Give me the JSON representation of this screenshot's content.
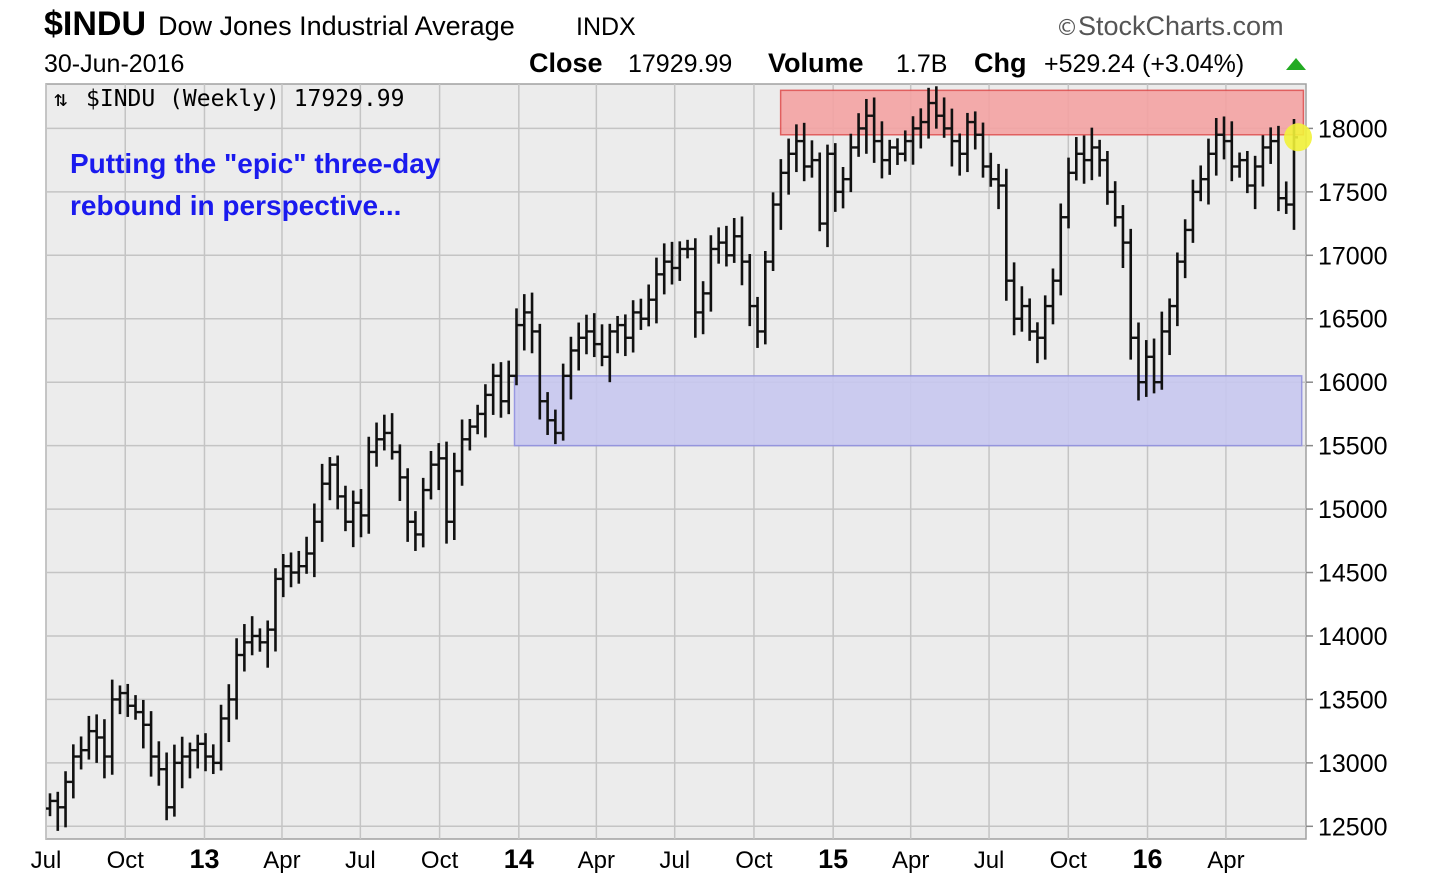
{
  "header": {
    "symbol": "$INDU",
    "name": "Dow Jones Industrial Average",
    "exchange": "INDX",
    "brand": "StockCharts.com",
    "date": "30-Jun-2016",
    "close_label": "Close",
    "close_value": "17929.99",
    "volume_label": "Volume",
    "volume_value": "1.7B",
    "chg_label": "Chg",
    "chg_value": "+529.24 (+3.04%)"
  },
  "legend": {
    "text": "$INDU (Weekly) 17929.99"
  },
  "annotation": {
    "line1": "Putting the \"epic\" three-day",
    "line2": "rebound in perspective..."
  },
  "colors": {
    "background": "#ececec",
    "annotation_text": "#1a1aee",
    "resistance_zone": "#f4a3a3",
    "support_zone": "#c8c8f0",
    "up_marker": "#22aa22",
    "last_price_marker": "#f2f23a"
  },
  "chart_data": {
    "type": "ohlc",
    "interval": "weekly",
    "grid": true,
    "ylim": [
      12400,
      18350
    ],
    "y_ticks": [
      12500,
      13000,
      13500,
      14000,
      14500,
      15000,
      15500,
      16000,
      16500,
      17000,
      17500,
      18000
    ],
    "x_tick_labels": [
      "Jul",
      "Oct",
      "13",
      "Apr",
      "Jul",
      "Oct",
      "14",
      "Apr",
      "Jul",
      "Oct",
      "15",
      "Apr",
      "Jul",
      "Oct",
      "16",
      "Apr"
    ],
    "x_tick_dates": [
      "2012-07-01",
      "2012-10-01",
      "2013-01-01",
      "2013-04-01",
      "2013-07-01",
      "2013-10-01",
      "2014-01-01",
      "2014-04-01",
      "2014-07-01",
      "2014-10-01",
      "2015-01-01",
      "2015-04-01",
      "2015-07-01",
      "2015-10-01",
      "2016-01-01",
      "2016-04-01"
    ],
    "x_start": "2012-07-01",
    "x_end": "2016-07-03",
    "last_close": 17929.99,
    "zones": [
      {
        "name": "resistance",
        "x_from": "2014-11-01",
        "x_to": "2016-06-30",
        "y_from": 17950,
        "y_to": 18300
      },
      {
        "name": "support",
        "x_from": "2013-12-27",
        "x_to": "2016-06-28",
        "y_from": 15500,
        "y_to": 16050
      }
    ],
    "weekly_close": [
      12700,
      12650,
      12850,
      13050,
      13100,
      13250,
      13200,
      13050,
      13500,
      13550,
      13450,
      13400,
      13300,
      13050,
      12950,
      12650,
      13000,
      13050,
      13100,
      13150,
      13050,
      13000,
      13350,
      13500,
      13850,
      13950,
      14000,
      13950,
      14050,
      14450,
      14550,
      14500,
      14550,
      14650,
      14900,
      15200,
      15350,
      15100,
      14900,
      15050,
      14950,
      15450,
      15550,
      15600,
      15450,
      15250,
      14900,
      14800,
      15150,
      15350,
      15400,
      14900,
      15300,
      15550,
      15650,
      15750,
      15900,
      16050,
      15850,
      16050,
      16450,
      16550,
      16400,
      15850,
      15700,
      15600,
      16050,
      16250,
      16350,
      16400,
      16300,
      16200,
      16400,
      16450,
      16350,
      16550,
      16500,
      16650,
      16850,
      16950,
      16900,
      17050,
      17050,
      16550,
      16700,
      17050,
      17100,
      17000,
      17150,
      16950,
      16600,
      16400,
      16950,
      17400,
      17650,
      17800,
      17900,
      17700,
      17750,
      17250,
      17800,
      17500,
      17600,
      17850,
      18000,
      18100,
      17900,
      17750,
      17850,
      17800,
      17900,
      18000,
      18050,
      18200,
      18100,
      18000,
      17900,
      17800,
      18050,
      17950,
      17700,
      17600,
      17550,
      16800,
      16500,
      16600,
      16400,
      16350,
      16600,
      16800,
      17300,
      17650,
      17800,
      17750,
      17850,
      17750,
      17500,
      17300,
      17100,
      16350,
      16000,
      16200,
      16000,
      16400,
      16600,
      16950,
      17200,
      17500,
      17600,
      17800,
      17950,
      17900,
      17700,
      17750,
      17550,
      17700,
      17850,
      17900,
      17450,
      17400,
      17930
    ]
  }
}
